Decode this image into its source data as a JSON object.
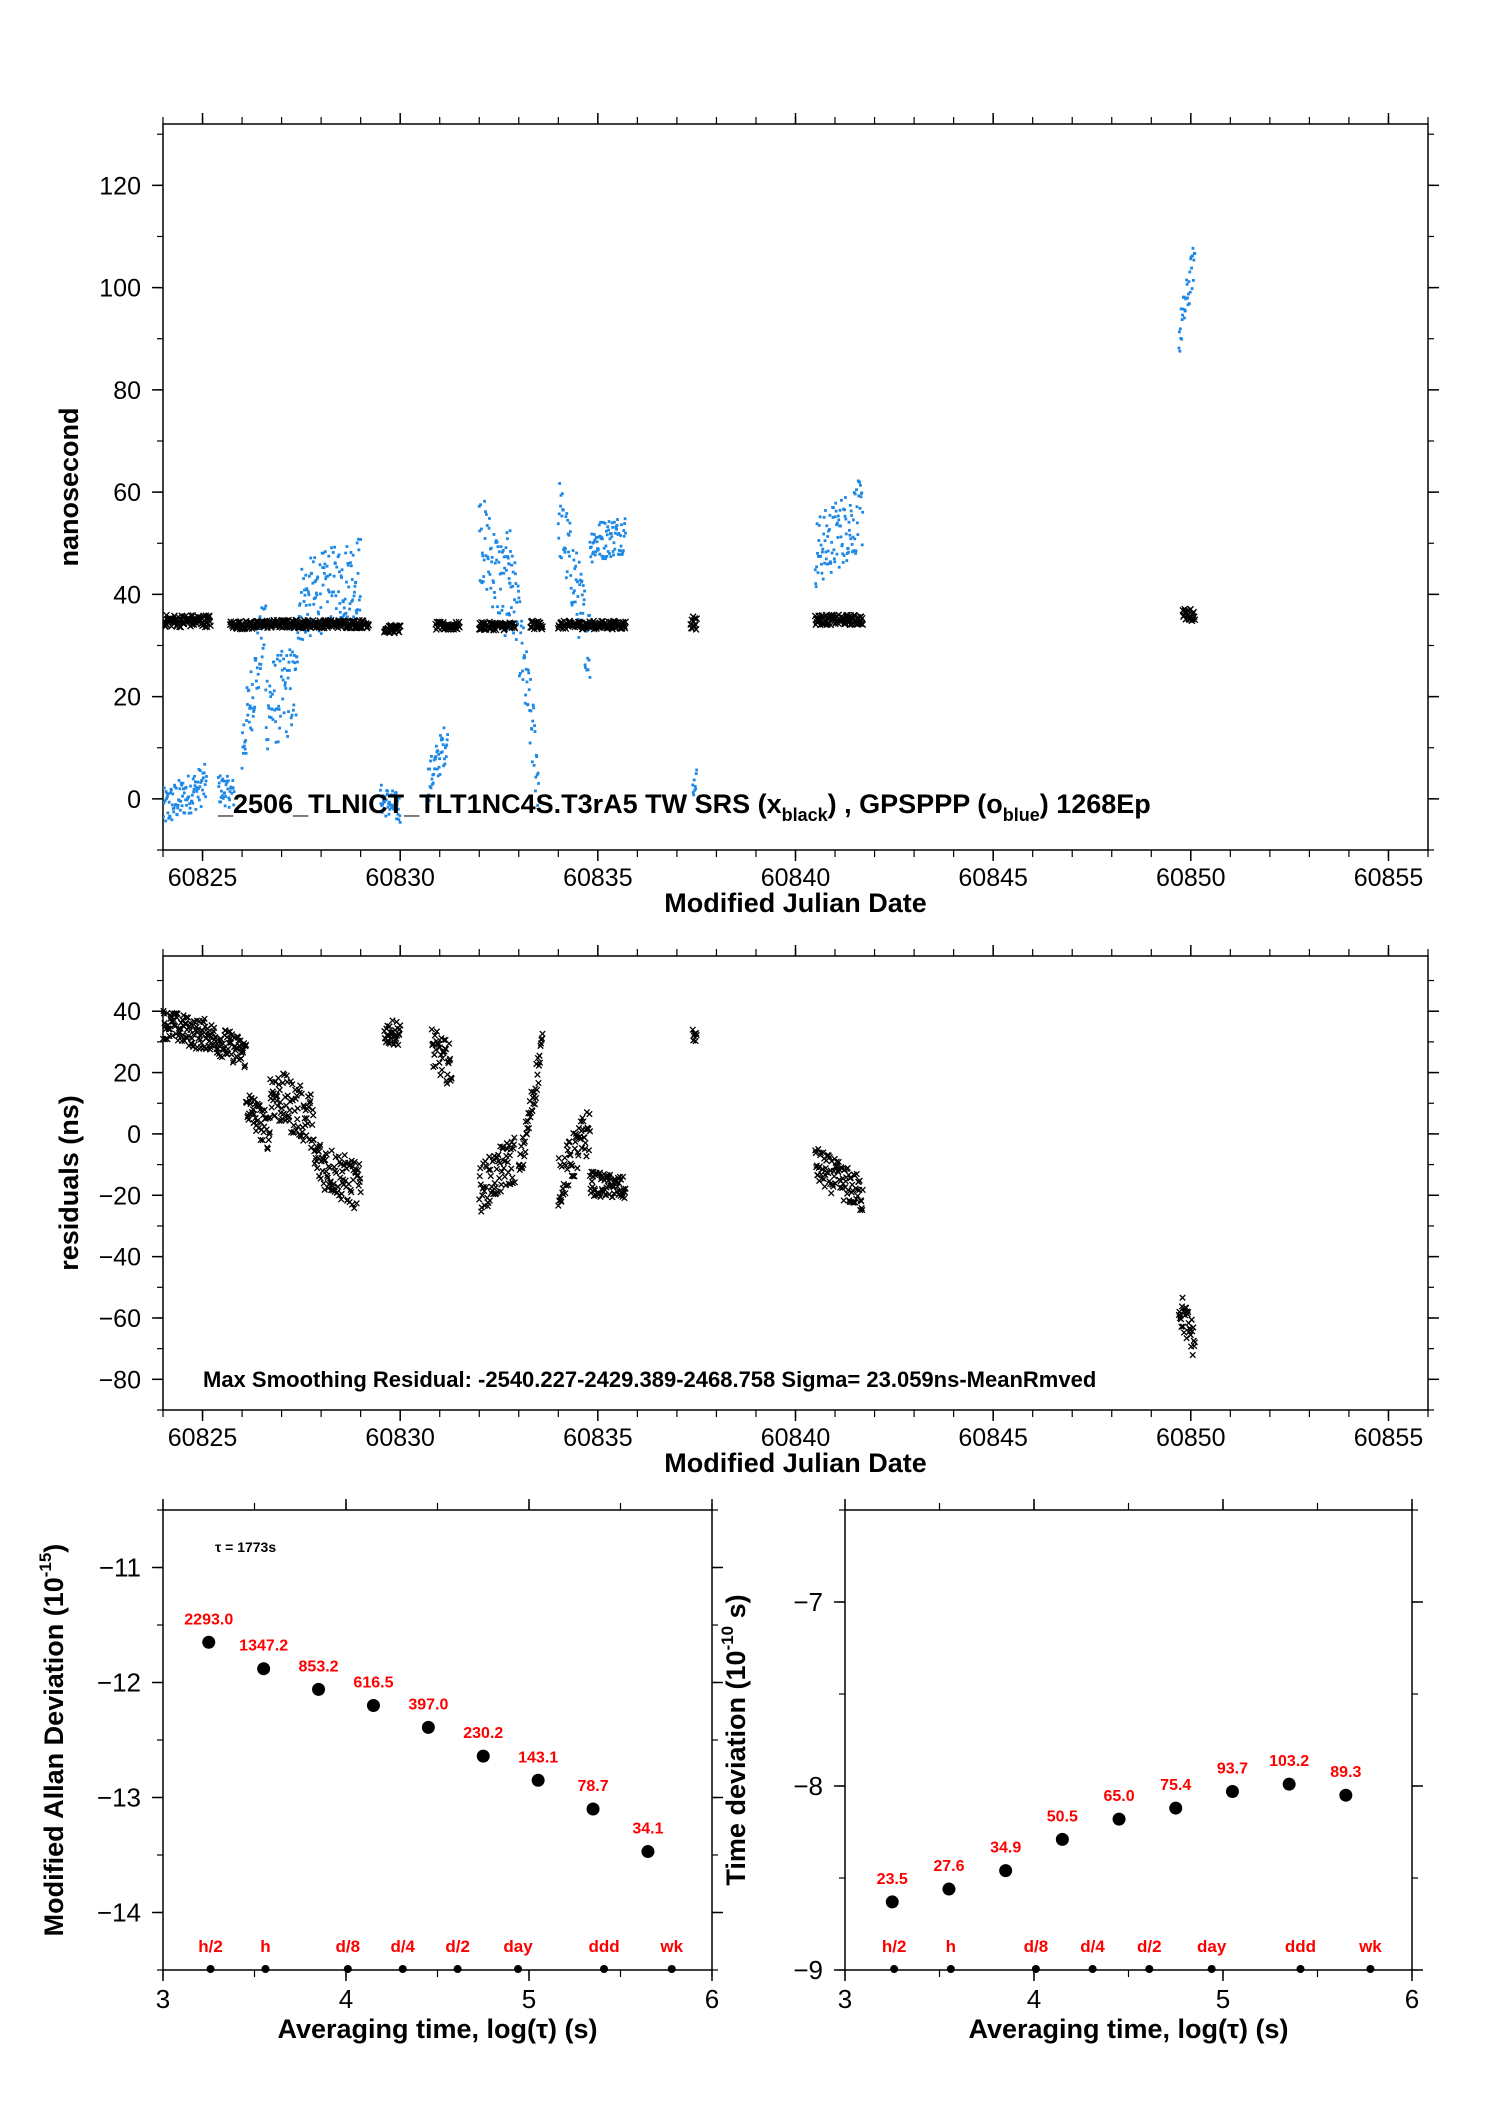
{
  "chart_data": [
    {
      "id": "top",
      "type": "scatter",
      "title": "",
      "xlabel": "Modified Julian Date",
      "ylabel": "nanosecond",
      "xlim": [
        60824,
        60856
      ],
      "ylim": [
        -10,
        132
      ],
      "xticks": [
        60825,
        60830,
        60835,
        60840,
        60845,
        60850,
        60855
      ],
      "yticks": [
        0,
        20,
        40,
        60,
        80,
        100,
        120
      ],
      "annotation": {
        "main": "_2506_TLNICT_TLT1NC4S.T3rA5    TW SRS (x",
        "sub1": "black",
        "mid": ") ,  GPSPPP (o",
        "sub2": "blue",
        "end": ")  1268Ep"
      },
      "colors": {
        "tw": "#000000",
        "gps": "#1e88e5"
      },
      "series": [
        {
          "name": "TW SRS",
          "marker": "x",
          "segments": [
            {
              "x0": 60824.0,
              "x1": 60825.2,
              "y": 34.8,
              "spread": 1.2
            },
            {
              "x0": 60825.7,
              "x1": 60826.5,
              "y": 34.0,
              "spread": 0.8
            },
            {
              "x0": 60826.5,
              "x1": 60829.2,
              "y": 34.2,
              "spread": 0.8
            },
            {
              "x0": 60829.6,
              "x1": 60830.0,
              "y": 33.2,
              "spread": 0.8
            },
            {
              "x0": 60830.9,
              "x1": 60831.5,
              "y": 33.8,
              "spread": 0.8
            },
            {
              "x0": 60832.0,
              "x1": 60832.9,
              "y": 33.8,
              "spread": 0.8
            },
            {
              "x0": 60833.3,
              "x1": 60833.6,
              "y": 34.0,
              "spread": 0.8
            },
            {
              "x0": 60834.0,
              "x1": 60835.7,
              "y": 34.0,
              "spread": 0.8
            },
            {
              "x0": 60837.35,
              "x1": 60837.5,
              "y": 34.5,
              "spread": 1.5
            },
            {
              "x0": 60840.5,
              "x1": 60841.7,
              "y": 35.0,
              "spread": 1.0
            },
            {
              "x0": 60849.8,
              "x1": 60850.1,
              "y": 36.0,
              "spread": 1.2
            }
          ]
        },
        {
          "name": "GPSPPP",
          "marker": "dot",
          "segments": [
            {
              "x0": 60824.0,
              "x1": 60825.1,
              "y0": -2,
              "y1": 3,
              "spread": 4
            },
            {
              "x0": 60825.4,
              "x1": 60825.8,
              "y0": 2,
              "y1": 1,
              "spread": 3
            },
            {
              "x0": 60826.0,
              "x1": 60826.6,
              "y0": 10,
              "y1": 35,
              "spread": 7
            },
            {
              "x0": 60826.6,
              "x1": 60827.4,
              "y0": 18,
              "y1": 22,
              "spread": 9
            },
            {
              "x0": 60827.4,
              "x1": 60829.0,
              "y0": 38,
              "y1": 44,
              "spread": 8
            },
            {
              "x0": 60829.5,
              "x1": 60830.0,
              "y0": 0,
              "y1": -2,
              "spread": 3
            },
            {
              "x0": 60830.7,
              "x1": 60831.2,
              "y0": 3,
              "y1": 12,
              "spread": 4
            },
            {
              "x0": 60832.0,
              "x1": 60832.8,
              "y0": 52,
              "y1": 38,
              "spread": 9
            },
            {
              "x0": 60832.7,
              "x1": 60833.5,
              "y0": 50,
              "y1": 4,
              "spread": 8
            },
            {
              "x0": 60834.0,
              "x1": 60834.8,
              "y0": 56,
              "y1": 30,
              "spread": 8
            },
            {
              "x0": 60834.8,
              "x1": 60835.7,
              "y0": 50,
              "y1": 52,
              "spread": 4
            },
            {
              "x0": 60837.4,
              "x1": 60837.5,
              "y0": 2,
              "y1": 4,
              "spread": 2
            },
            {
              "x0": 60840.5,
              "x1": 60841.7,
              "y0": 48,
              "y1": 56,
              "spread": 7
            },
            {
              "x0": 60849.7,
              "x1": 60850.1,
              "y0": 90,
              "y1": 106,
              "spread": 4
            }
          ]
        }
      ]
    },
    {
      "id": "residuals",
      "type": "scatter",
      "title": "",
      "xlabel": "Modified Julian Date",
      "ylabel": "residuals (ns)",
      "xlim": [
        60824,
        60856
      ],
      "ylim": [
        -90,
        58
      ],
      "xticks": [
        60825,
        60830,
        60835,
        60840,
        60845,
        60850,
        60855
      ],
      "yticks": [
        -80,
        -60,
        -40,
        -20,
        0,
        20,
        40
      ],
      "annotation": "Max Smoothing Residual: -2540.227-2429.389-2468.758  Sigma= 23.059ns-MeanRmved",
      "series": [
        {
          "name": "residuals",
          "marker": "x",
          "segments": [
            {
              "x0": 60824.0,
              "x1": 60825.0,
              "y0": 36,
              "y1": 32,
              "spread": 5
            },
            {
              "x0": 60825.0,
              "x1": 60826.1,
              "y0": 33,
              "y1": 26,
              "spread": 5
            },
            {
              "x0": 60826.1,
              "x1": 60826.7,
              "y0": 10,
              "y1": 0,
              "spread": 6
            },
            {
              "x0": 60826.7,
              "x1": 60827.8,
              "y0": 14,
              "y1": 4,
              "spread": 9
            },
            {
              "x0": 60827.8,
              "x1": 60829.0,
              "y0": -8,
              "y1": -18,
              "spread": 8
            },
            {
              "x0": 60829.6,
              "x1": 60830.0,
              "y0": 33,
              "y1": 33,
              "spread": 4
            },
            {
              "x0": 60830.8,
              "x1": 60831.3,
              "y0": 28,
              "y1": 22,
              "spread": 7
            },
            {
              "x0": 60832.0,
              "x1": 60832.9,
              "y0": -18,
              "y1": -8,
              "spread": 8
            },
            {
              "x0": 60833.0,
              "x1": 60833.6,
              "y0": -14,
              "y1": 29,
              "spread": 6
            },
            {
              "x0": 60834.0,
              "x1": 60834.8,
              "y0": -16,
              "y1": 2,
              "spread": 8
            },
            {
              "x0": 60834.8,
              "x1": 60835.7,
              "y0": -16,
              "y1": -18,
              "spread": 4
            },
            {
              "x0": 60837.4,
              "x1": 60837.5,
              "y0": 32,
              "y1": 32,
              "spread": 2
            },
            {
              "x0": 60840.5,
              "x1": 60841.7,
              "y0": -10,
              "y1": -20,
              "spread": 6
            },
            {
              "x0": 60849.7,
              "x1": 60850.1,
              "y0": -56,
              "y1": -68,
              "spread": 6
            }
          ]
        }
      ]
    },
    {
      "id": "mdev",
      "type": "scatter",
      "title": "",
      "xlabel": "Averaging time, log(τ) (s)",
      "ylabel": "Modified Allan Deviation (10",
      "ylabel_sup": "-15",
      "ylabel_end": ")",
      "xlim": [
        3,
        6
      ],
      "ylim": [
        -14.5,
        -10.5
      ],
      "xticks": [
        3,
        4,
        5,
        6
      ],
      "yticks": [
        -14,
        -13,
        -12,
        -11
      ],
      "annotation": "τ = 1773s",
      "label_color": "#ff0000",
      "points": [
        {
          "x": 3.25,
          "y": -11.65,
          "label": "2293.0"
        },
        {
          "x": 3.55,
          "y": -11.88,
          "label": "1347.2"
        },
        {
          "x": 3.85,
          "y": -12.06,
          "label": "853.2"
        },
        {
          "x": 4.15,
          "y": -12.2,
          "label": "616.5"
        },
        {
          "x": 4.45,
          "y": -12.39,
          "label": "397.0"
        },
        {
          "x": 4.75,
          "y": -12.64,
          "label": "230.2"
        },
        {
          "x": 5.05,
          "y": -12.85,
          "label": "143.1"
        },
        {
          "x": 5.35,
          "y": -13.1,
          "label": "78.7"
        },
        {
          "x": 5.65,
          "y": -13.47,
          "label": "34.1"
        }
      ],
      "markers": [
        {
          "x": 3.26,
          "label": "h/2"
        },
        {
          "x": 3.56,
          "label": "h"
        },
        {
          "x": 4.01,
          "label": "d/8"
        },
        {
          "x": 4.31,
          "label": "d/4"
        },
        {
          "x": 4.61,
          "label": "d/2"
        },
        {
          "x": 4.94,
          "label": "day"
        },
        {
          "x": 5.41,
          "label": "ddd"
        },
        {
          "x": 5.78,
          "label": "wk"
        }
      ]
    },
    {
      "id": "tdev",
      "type": "scatter",
      "title": "",
      "xlabel": "Averaging time, log(τ) (s)",
      "ylabel": "Time deviation (10",
      "ylabel_sup": "-10",
      "ylabel_end": " s)",
      "xlim": [
        3,
        6
      ],
      "ylim": [
        -9,
        -6.5
      ],
      "xticks": [
        3,
        4,
        5,
        6
      ],
      "yticks": [
        -9,
        -8,
        -7
      ],
      "annotation": "",
      "label_color": "#ff0000",
      "points": [
        {
          "x": 3.25,
          "y": -8.63,
          "label": "23.5"
        },
        {
          "x": 3.55,
          "y": -8.56,
          "label": "27.6"
        },
        {
          "x": 3.85,
          "y": -8.46,
          "label": "34.9"
        },
        {
          "x": 4.15,
          "y": -8.29,
          "label": "50.5"
        },
        {
          "x": 4.45,
          "y": -8.18,
          "label": "65.0"
        },
        {
          "x": 4.75,
          "y": -8.12,
          "label": "75.4"
        },
        {
          "x": 5.05,
          "y": -8.03,
          "label": "93.7"
        },
        {
          "x": 5.35,
          "y": -7.99,
          "label": "103.2"
        },
        {
          "x": 5.65,
          "y": -8.05,
          "label": "89.3"
        }
      ],
      "markers": [
        {
          "x": 3.26,
          "label": "h/2"
        },
        {
          "x": 3.56,
          "label": "h"
        },
        {
          "x": 4.01,
          "label": "d/8"
        },
        {
          "x": 4.31,
          "label": "d/4"
        },
        {
          "x": 4.61,
          "label": "d/2"
        },
        {
          "x": 4.94,
          "label": "day"
        },
        {
          "x": 5.41,
          "label": "ddd"
        },
        {
          "x": 5.78,
          "label": "wk"
        }
      ]
    }
  ]
}
